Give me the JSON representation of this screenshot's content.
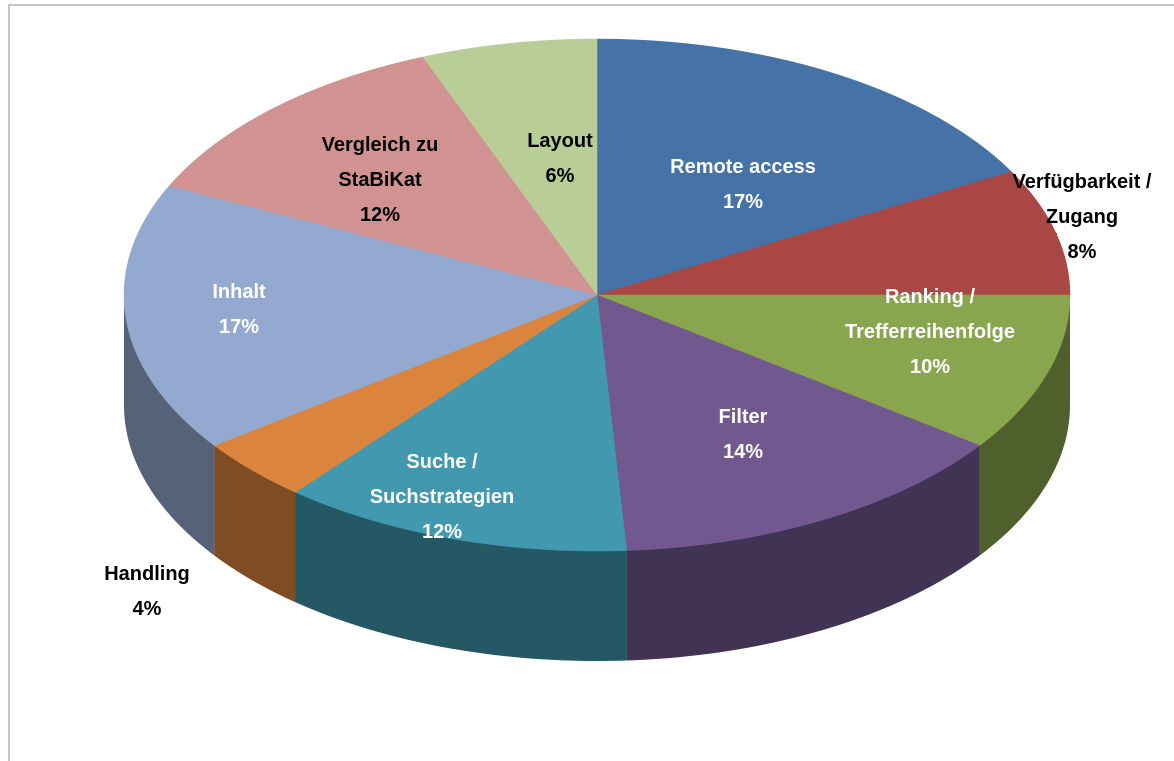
{
  "chart_data": {
    "type": "pie",
    "categories": [
      "Remote access",
      "Verfügbarkeit / Zugang",
      "Ranking / Trefferreihenfolge",
      "Filter",
      "Suche / Suchstrategien",
      "Handling",
      "Inhalt",
      "Vergleich zu StaBiKat",
      "Layout"
    ],
    "values": [
      17,
      8,
      10,
      14,
      12,
      4,
      17,
      12,
      6
    ],
    "value_labels": [
      "17%",
      "8%",
      "10%",
      "14%",
      "12%",
      "4%",
      "17%",
      "12%",
      "6%"
    ],
    "colors": [
      "#4572a7",
      "#aa4643",
      "#89a54e",
      "#71588f",
      "#4198af",
      "#db843d",
      "#93a9cf",
      "#d19392",
      "#b9cd96"
    ]
  }
}
